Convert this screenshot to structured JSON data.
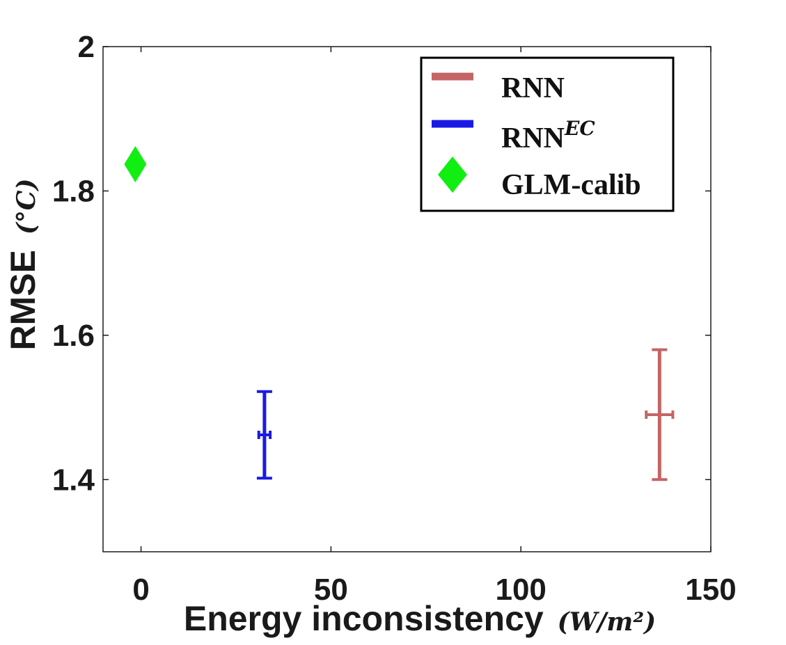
{
  "chart_data": {
    "type": "scatter",
    "title": "",
    "xlabel": "Energy inconsistency",
    "xlabel_unit": "(W/m²)",
    "ylabel": "RMSE",
    "ylabel_unit": "(°C)",
    "xlim": [
      -10,
      150
    ],
    "ylim": [
      1.3,
      2.0
    ],
    "xticks": [
      "0",
      "50",
      "100",
      "150"
    ],
    "yticks": [
      "1.4",
      "1.6",
      "1.8",
      "2"
    ],
    "xtick_values": [
      0,
      50,
      100,
      150
    ],
    "ytick_values": [
      1.4,
      1.6,
      1.8,
      2.0
    ],
    "grid": false,
    "legend_position": "top-right",
    "series": [
      {
        "name": "RNN",
        "color": "#c46464",
        "marker": "errorbar",
        "x": 136.5,
        "x_err": 3.5,
        "y": 1.49,
        "y_low": 1.4,
        "y_high": 1.58
      },
      {
        "name": "RNN",
        "name_superscript": "EC",
        "color": "#1a1ae6",
        "marker": "errorbar",
        "x": 32.5,
        "x_err": 1.5,
        "y": 1.462,
        "y_low": 1.402,
        "y_high": 1.522
      },
      {
        "name": "GLM-calib",
        "color": "#11ee11",
        "marker": "diamond",
        "x": -1.5,
        "y": 1.837
      }
    ]
  }
}
